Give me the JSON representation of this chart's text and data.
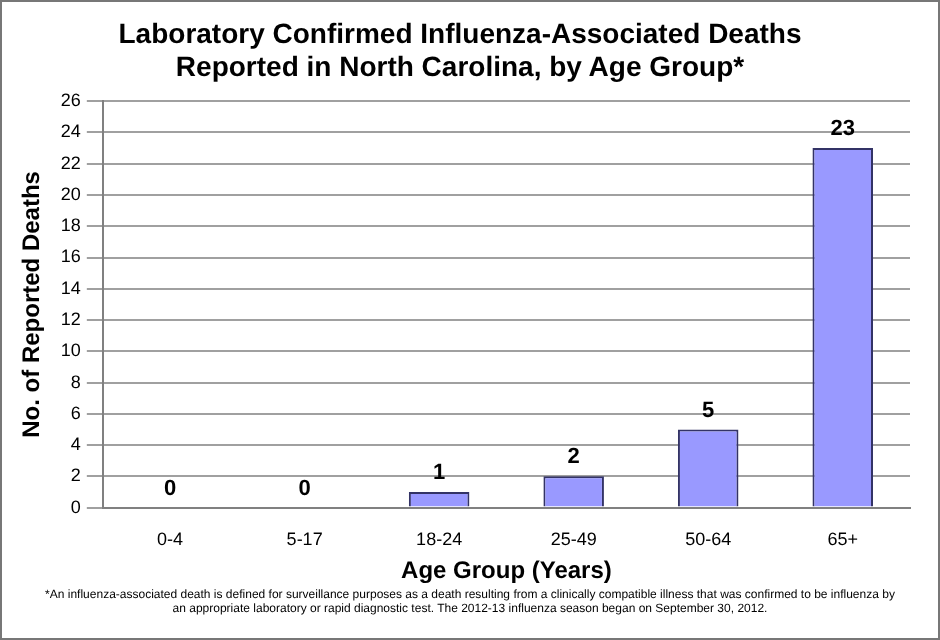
{
  "chart_data": {
    "type": "bar",
    "title": "Laboratory Confirmed Influenza-Associated Deaths\nReported in North Carolina, by Age Group*",
    "xlabel": "Age Group (Years)",
    "ylabel": "No. of Reported Deaths",
    "categories": [
      "0-4",
      "5-17",
      "18-24",
      "25-49",
      "50-64",
      "65+"
    ],
    "values": [
      0,
      0,
      1,
      2,
      5,
      23
    ],
    "color": "#9999ff",
    "ylim": [
      0,
      26
    ],
    "yticks": [
      0,
      2,
      4,
      6,
      8,
      10,
      12,
      14,
      16,
      18,
      20,
      22,
      24,
      26
    ],
    "grid": "y",
    "data_labels": true,
    "annotations": [
      "*An influenza-associated death is defined for surveillance purposes as a death resulting from a clinically compatible illness that was confirmed to be influenza by an appropriate laboratory or rapid diagnostic test. The 2012-13 influenza season began on September 30, 2012."
    ]
  }
}
